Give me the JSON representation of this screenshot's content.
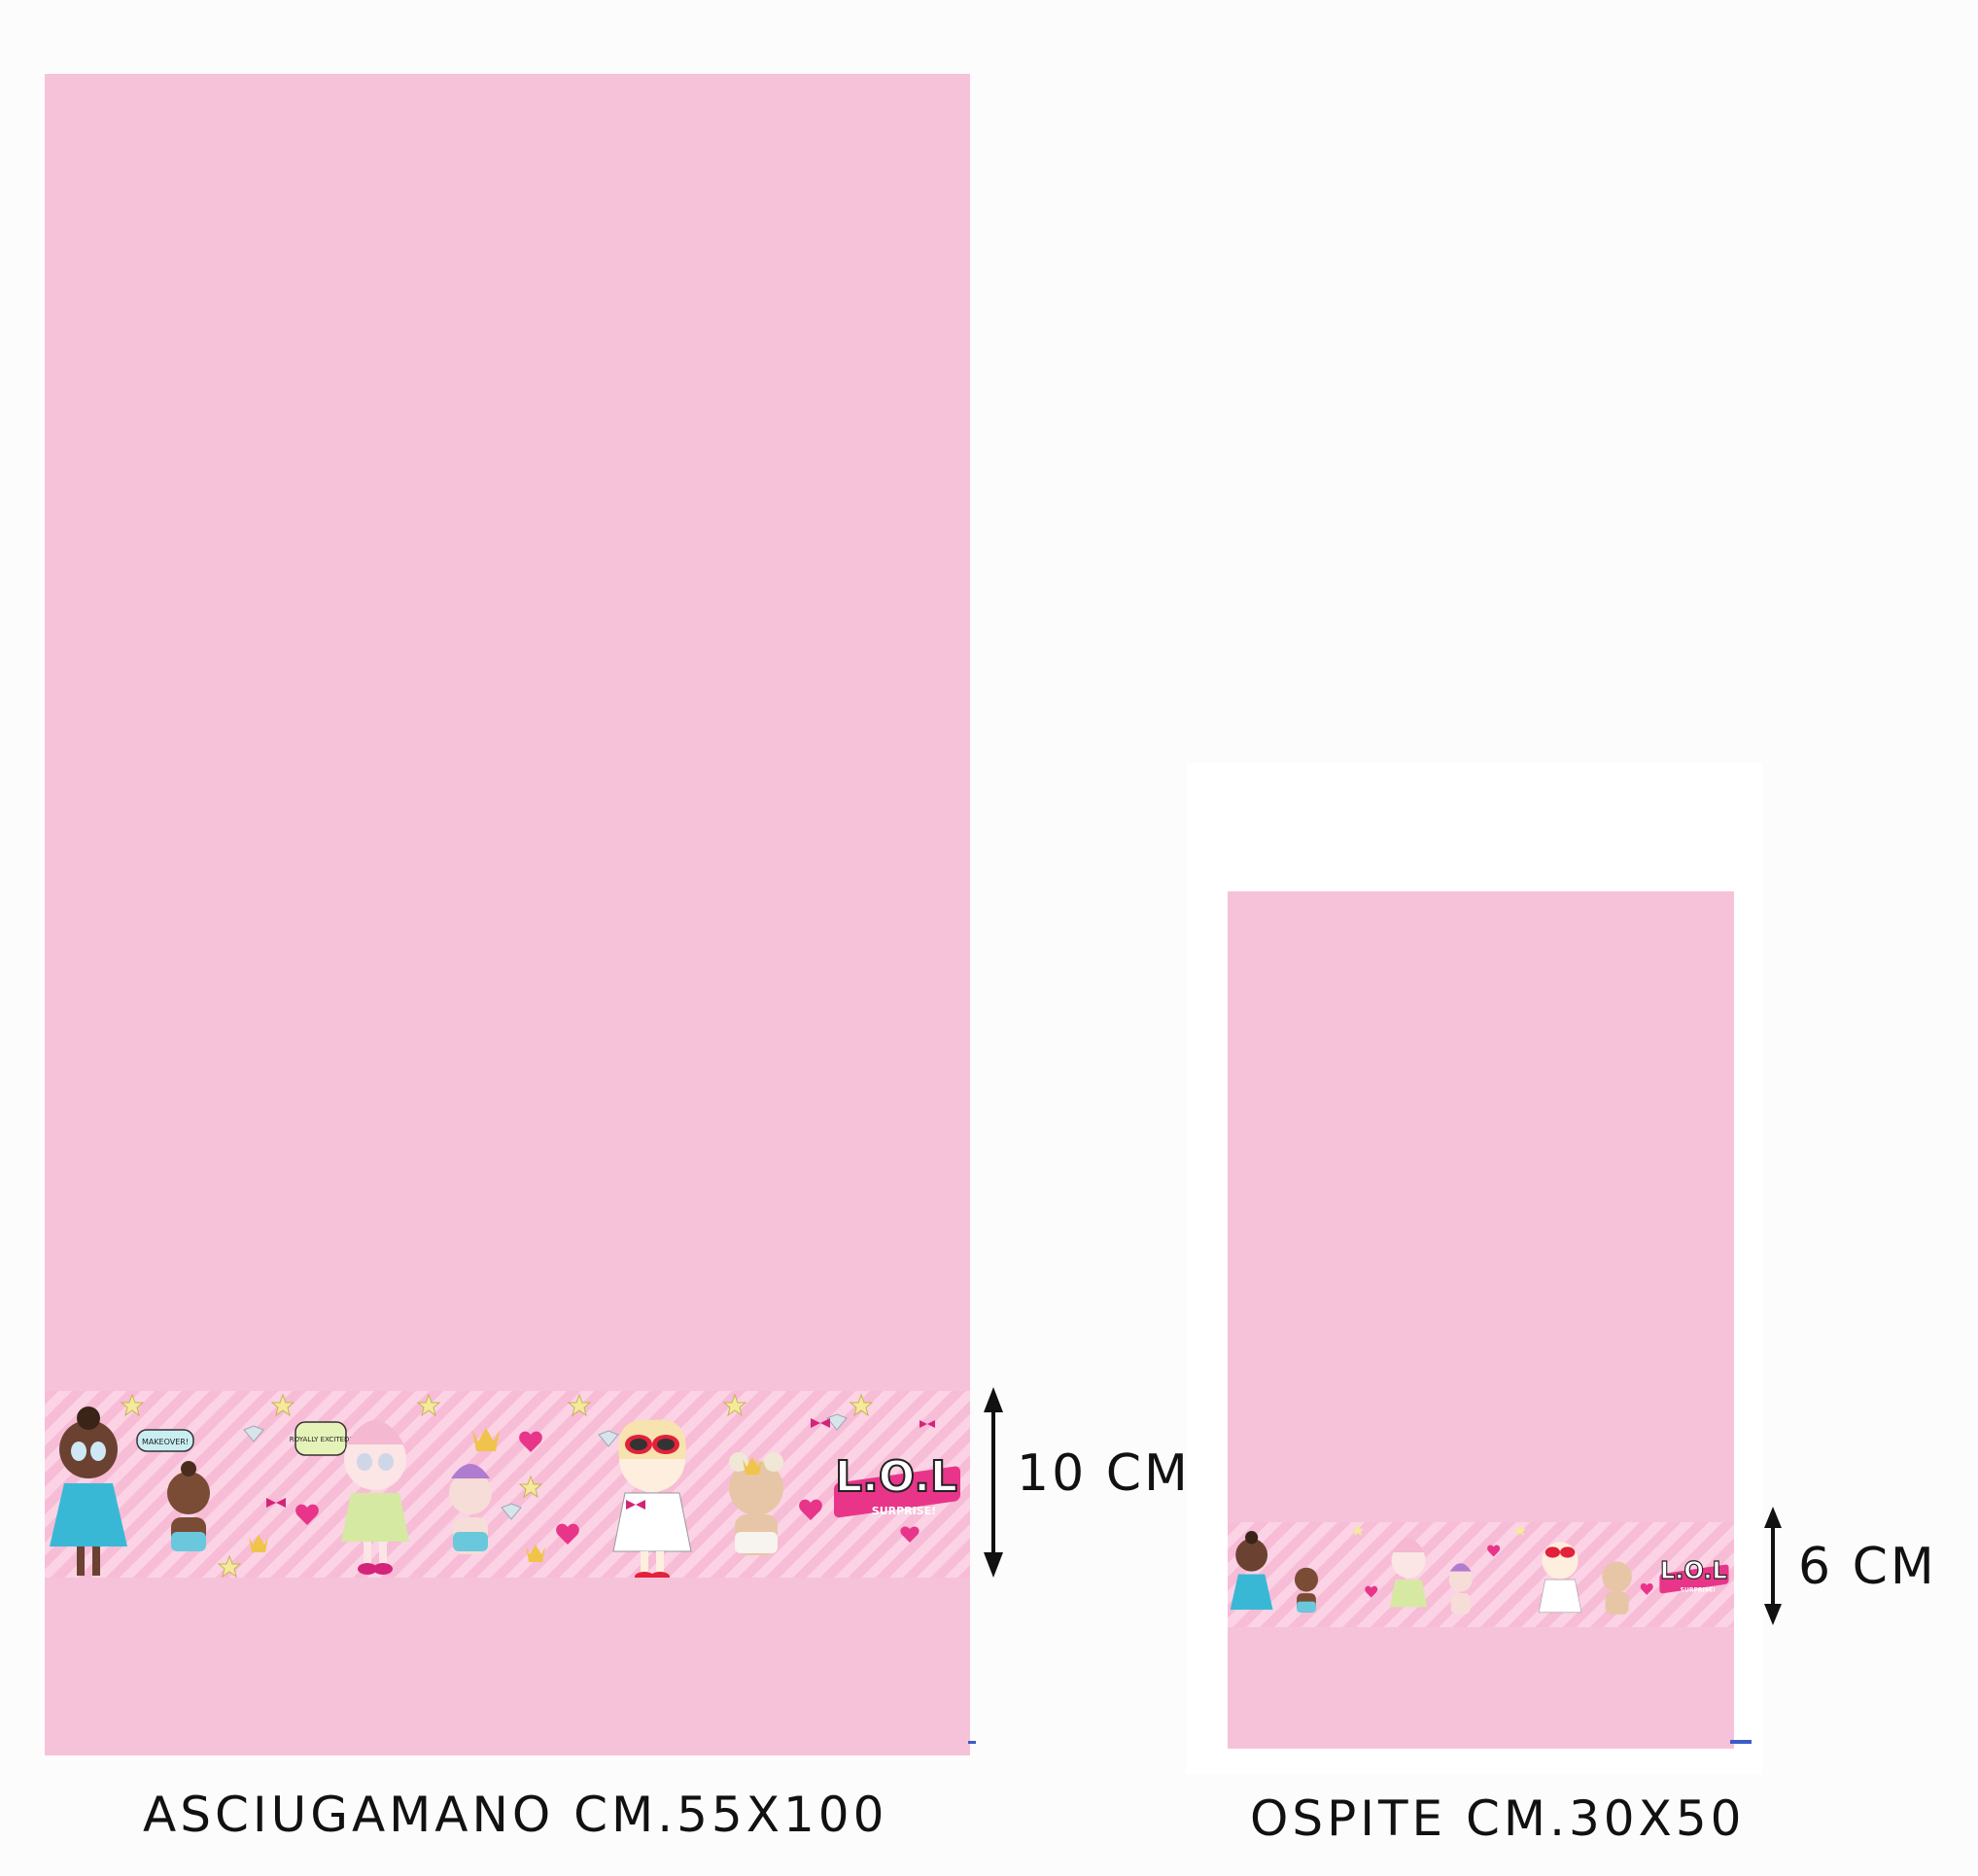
{
  "products": [
    {
      "label": "ASCIUGAMANO CM.55X100",
      "border_height": "10 CM",
      "color": "#f6c2da"
    },
    {
      "label": "OSPITE CM.30X50",
      "border_height": "6 CM",
      "color": "#f6c2da"
    }
  ],
  "band": {
    "logo_text": "L.O.L",
    "logo_subtext": "SURPRISE!",
    "bubble_1": "MAKEOVER!",
    "bubble_2": "ROYALLY EXCITED!"
  },
  "icons": [
    "doll-illustration",
    "heart-icon",
    "star-icon",
    "crown-icon",
    "bow-icon",
    "diamond-icon",
    "double-arrow-icon"
  ]
}
